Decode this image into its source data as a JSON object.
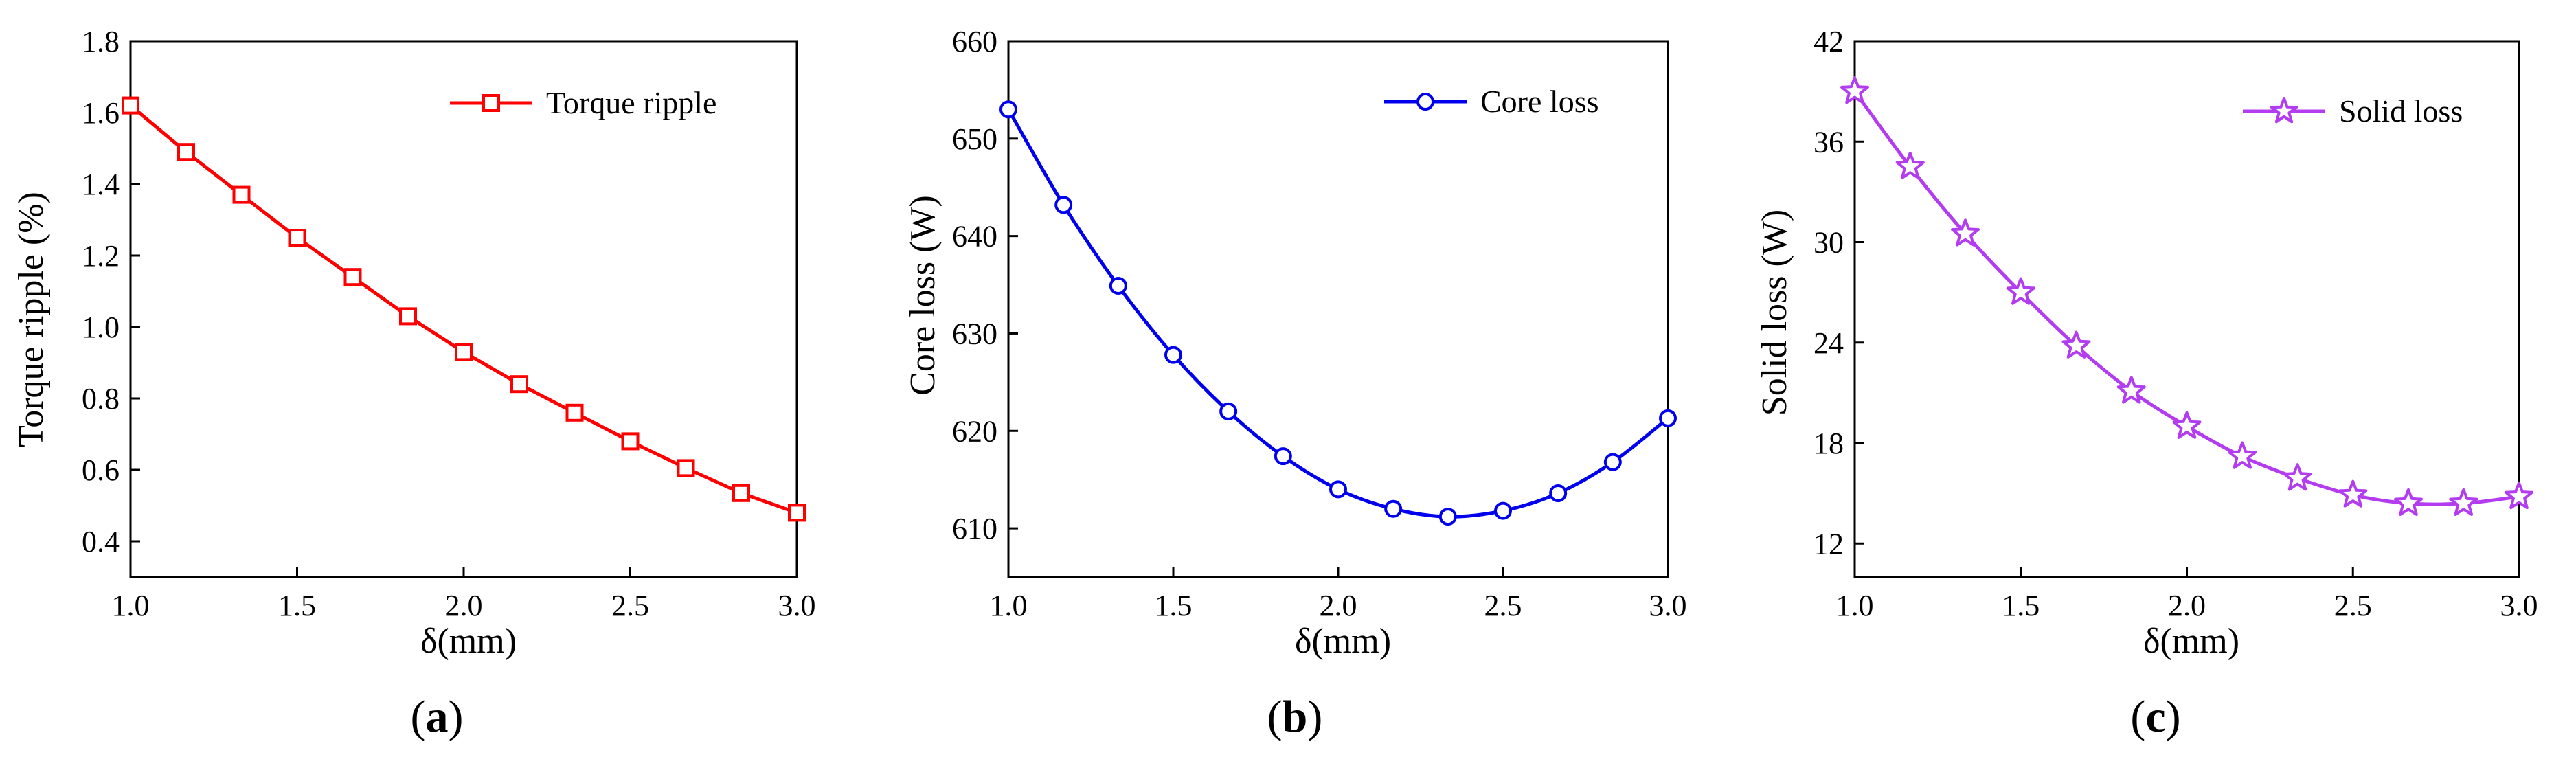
{
  "panel_labels": [
    {
      "open": "(",
      "letter": "a",
      "close": ")"
    },
    {
      "open": "(",
      "letter": "b",
      "close": ")"
    },
    {
      "open": "(",
      "letter": "c",
      "close": ")"
    }
  ],
  "chart_data": [
    {
      "type": "line",
      "title": "",
      "xlabel": "δ(mm)",
      "ylabel": "Torque ripple (%)",
      "xlim": [
        1.0,
        3.0
      ],
      "ylim": [
        0.3,
        1.8
      ],
      "xticks": [
        1.0,
        1.5,
        2.0,
        2.5,
        3.0
      ],
      "xtick_labels": [
        "1.0",
        "1.5",
        "2.0",
        "2.5",
        "3.0"
      ],
      "yticks": [
        0.4,
        0.6,
        0.8,
        1.0,
        1.2,
        1.4,
        1.6,
        1.8
      ],
      "ytick_labels": [
        "0.4",
        "0.6",
        "0.8",
        "1.0",
        "1.2",
        "1.4",
        "1.6",
        "1.8"
      ],
      "legend_position": "top-right",
      "series": [
        {
          "name": "Torque ripple",
          "color": "#ff0000",
          "marker": "square",
          "x": [
            1.0,
            1.167,
            1.333,
            1.5,
            1.667,
            1.833,
            2.0,
            2.167,
            2.333,
            2.5,
            2.667,
            2.833,
            3.0
          ],
          "y": [
            1.62,
            1.49,
            1.37,
            1.25,
            1.14,
            1.03,
            0.93,
            0.84,
            0.76,
            0.68,
            0.605,
            0.535,
            0.48
          ]
        }
      ]
    },
    {
      "type": "line",
      "title": "",
      "xlabel": "δ(mm)",
      "ylabel": "Core loss (W)",
      "xlim": [
        1.0,
        3.0
      ],
      "ylim": [
        605,
        660
      ],
      "xticks": [
        1.0,
        1.5,
        2.0,
        2.5,
        3.0
      ],
      "xtick_labels": [
        "1.0",
        "1.5",
        "2.0",
        "2.5",
        "3.0"
      ],
      "yticks": [
        610,
        620,
        630,
        640,
        650,
        660
      ],
      "ytick_labels": [
        "610",
        "620",
        "630",
        "640",
        "650",
        "660"
      ],
      "legend_position": "top-right",
      "series": [
        {
          "name": "Core loss",
          "color": "#0000ee",
          "marker": "circle",
          "x": [
            1.0,
            1.167,
            1.333,
            1.5,
            1.667,
            1.833,
            2.0,
            2.167,
            2.333,
            2.5,
            2.667,
            2.833,
            3.0
          ],
          "y": [
            653.0,
            643.2,
            634.9,
            627.8,
            622.0,
            617.4,
            614.0,
            612.0,
            611.2,
            611.8,
            613.6,
            616.8,
            621.3
          ]
        }
      ]
    },
    {
      "type": "line",
      "title": "",
      "xlabel": "δ(mm)",
      "ylabel": "Solid loss (W)",
      "xlim": [
        1.0,
        3.0
      ],
      "ylim": [
        10,
        42
      ],
      "xticks": [
        1.0,
        1.5,
        2.0,
        2.5,
        3.0
      ],
      "xtick_labels": [
        "1.0",
        "1.5",
        "2.0",
        "2.5",
        "3.0"
      ],
      "yticks": [
        12,
        18,
        24,
        30,
        36,
        42
      ],
      "ytick_labels": [
        "12",
        "18",
        "24",
        "30",
        "36",
        "42"
      ],
      "legend_position": "top-right",
      "series": [
        {
          "name": "Solid loss",
          "color": "#b33cf0",
          "marker": "star",
          "x": [
            1.0,
            1.167,
            1.333,
            1.5,
            1.667,
            1.833,
            2.0,
            2.167,
            2.333,
            2.5,
            2.667,
            2.833,
            3.0
          ],
          "y": [
            39.0,
            34.5,
            30.5,
            27.0,
            23.8,
            21.1,
            19.0,
            17.2,
            15.9,
            14.9,
            14.4,
            14.4,
            14.8
          ]
        }
      ]
    }
  ]
}
